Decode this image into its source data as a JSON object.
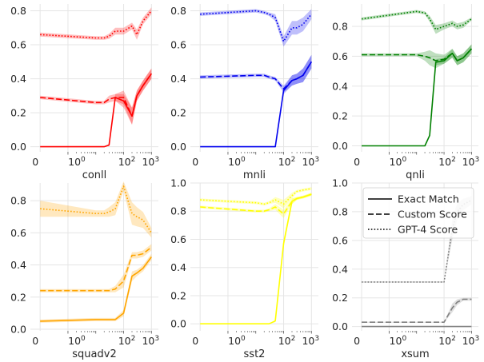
{
  "chart_data": [
    {
      "type": "line",
      "title": "",
      "xlabel": "conll",
      "ylabel": "",
      "xscale": "symlog",
      "x": [
        0,
        10,
        20,
        30,
        50,
        100,
        200,
        300,
        500,
        1000
      ],
      "ylim": [
        -0.03,
        0.84
      ],
      "yticks": [
        0.0,
        0.2,
        0.4,
        0.6,
        0.8
      ],
      "ytick_labels": [
        "0.0",
        "0.2",
        "0.4",
        "0.6",
        "0.8"
      ],
      "xtick_labels": [
        "0",
        "10",
        "0",
        "10",
        "2",
        "10",
        "3"
      ],
      "grid": true,
      "color": "#ff0000",
      "series": [
        {
          "values": [
            0.0,
            0.0,
            0.0,
            0.01,
            0.29,
            0.27,
            0.18,
            0.3,
            0.36,
            0.43
          ],
          "spread": [
            0,
            0,
            0,
            0.005,
            0.02,
            0.04,
            0.05,
            0.03,
            0.03,
            0.03
          ],
          "style": "solid"
        },
        {
          "values": [
            0.29,
            0.26,
            0.26,
            0.28,
            0.29,
            0.29,
            0.18,
            0.3,
            0.36,
            0.43
          ],
          "spread": [
            0.01,
            0.01,
            0.01,
            0.02,
            0.02,
            0.04,
            0.05,
            0.03,
            0.03,
            0.03
          ],
          "style": "dashed"
        },
        {
          "values": [
            0.66,
            0.64,
            0.64,
            0.65,
            0.68,
            0.68,
            0.71,
            0.66,
            0.74,
            0.8
          ],
          "spread": [
            0.012,
            0.01,
            0.01,
            0.015,
            0.02,
            0.02,
            0.02,
            0.03,
            0.02,
            0.02
          ],
          "style": "dotted"
        }
      ]
    },
    {
      "type": "line",
      "title": "",
      "xlabel": "mnli",
      "ylabel": "",
      "xscale": "symlog",
      "x": [
        0,
        10,
        20,
        30,
        50,
        100,
        200,
        300,
        500,
        1000
      ],
      "ylim": [
        -0.03,
        0.84
      ],
      "yticks": [
        0.0,
        0.2,
        0.4,
        0.6,
        0.8
      ],
      "ytick_labels": [
        "0.0",
        "0.2",
        "0.4",
        "0.6",
        "0.8"
      ],
      "xtick_labels": [
        "0",
        "10",
        "0",
        "10",
        "2",
        "10",
        "3"
      ],
      "grid": true,
      "color": "#0000ee",
      "series": [
        {
          "values": [
            0.0,
            0.0,
            0.0,
            0.0,
            0.0,
            0.33,
            0.39,
            0.4,
            0.42,
            0.5
          ],
          "spread": [
            0,
            0,
            0,
            0,
            0,
            0.02,
            0.03,
            0.03,
            0.04,
            0.04
          ],
          "style": "solid"
        },
        {
          "values": [
            0.41,
            0.42,
            0.42,
            0.41,
            0.4,
            0.34,
            0.39,
            0.4,
            0.42,
            0.5
          ],
          "spread": [
            0.01,
            0.01,
            0.01,
            0.01,
            0.01,
            0.02,
            0.03,
            0.03,
            0.04,
            0.04
          ],
          "style": "dashed"
        },
        {
          "values": [
            0.78,
            0.8,
            0.79,
            0.78,
            0.76,
            0.62,
            0.7,
            0.7,
            0.72,
            0.78
          ],
          "spread": [
            0.01,
            0.01,
            0.01,
            0.01,
            0.02,
            0.03,
            0.04,
            0.04,
            0.04,
            0.03
          ],
          "style": "dotted"
        }
      ]
    },
    {
      "type": "line",
      "title": "",
      "xlabel": "qnli",
      "ylabel": "",
      "xscale": "symlog",
      "x": [
        0,
        10,
        20,
        30,
        50,
        100,
        200,
        300,
        500,
        1000
      ],
      "ylim": [
        -0.04,
        0.95
      ],
      "yticks": [
        0.0,
        0.2,
        0.4,
        0.6,
        0.8
      ],
      "ytick_labels": [
        "0.0",
        "0.2",
        "0.4",
        "0.6",
        "0.8"
      ],
      "xtick_labels": [
        "0",
        "10",
        "0",
        "10",
        "2",
        "10",
        "3"
      ],
      "grid": true,
      "color": "#008000",
      "series": [
        {
          "values": [
            0.0,
            0.0,
            0.0,
            0.07,
            0.56,
            0.57,
            0.62,
            0.57,
            0.59,
            0.65
          ],
          "spread": [
            0,
            0,
            0,
            0.01,
            0.02,
            0.02,
            0.03,
            0.03,
            0.03,
            0.03
          ],
          "style": "solid"
        },
        {
          "values": [
            0.61,
            0.61,
            0.6,
            0.59,
            0.57,
            0.58,
            0.62,
            0.57,
            0.59,
            0.65
          ],
          "spread": [
            0.01,
            0.01,
            0.03,
            0.05,
            0.05,
            0.03,
            0.03,
            0.03,
            0.03,
            0.03
          ],
          "style": "dashed"
        },
        {
          "values": [
            0.85,
            0.9,
            0.89,
            0.85,
            0.78,
            0.8,
            0.82,
            0.8,
            0.81,
            0.85
          ],
          "spread": [
            0.01,
            0.01,
            0.01,
            0.02,
            0.03,
            0.02,
            0.02,
            0.02,
            0.02,
            0.01
          ],
          "style": "dotted"
        }
      ]
    },
    {
      "type": "line",
      "title": "",
      "xlabel": "squadv2",
      "ylabel": "",
      "xscale": "symlog",
      "x": [
        0,
        10,
        20,
        30,
        50,
        100,
        200,
        300,
        500,
        1000
      ],
      "ylim": [
        -0.01,
        0.91
      ],
      "yticks": [
        0.0,
        0.2,
        0.4,
        0.6,
        0.8
      ],
      "ytick_labels": [
        "0.0",
        "0.2",
        "0.4",
        "0.6",
        "0.8"
      ],
      "xtick_labels": [
        "0",
        "10",
        "0",
        "10",
        "2",
        "10",
        "3"
      ],
      "grid": true,
      "color": "#ffa500",
      "series": [
        {
          "values": [
            0.05,
            0.06,
            0.06,
            0.06,
            0.06,
            0.1,
            0.33,
            0.35,
            0.38,
            0.45
          ],
          "spread": [
            0.01,
            0.01,
            0.01,
            0.01,
            0.01,
            0.02,
            0.03,
            0.02,
            0.02,
            0.02
          ],
          "style": "solid"
        },
        {
          "values": [
            0.24,
            0.24,
            0.24,
            0.24,
            0.25,
            0.3,
            0.46,
            0.46,
            0.47,
            0.51
          ],
          "spread": [
            0.01,
            0.01,
            0.01,
            0.01,
            0.02,
            0.04,
            0.02,
            0.02,
            0.02,
            0.02
          ],
          "style": "dashed"
        },
        {
          "values": [
            0.75,
            0.72,
            0.72,
            0.73,
            0.75,
            0.89,
            0.72,
            0.7,
            0.68,
            0.6
          ],
          "spread": [
            0.05,
            0.02,
            0.02,
            0.03,
            0.04,
            0.03,
            0.07,
            0.06,
            0.05,
            0.03
          ],
          "style": "dotted"
        }
      ]
    },
    {
      "type": "line",
      "title": "",
      "xlabel": "sst2",
      "ylabel": "",
      "xscale": "symlog",
      "x": [
        0,
        10,
        20,
        30,
        50,
        100,
        200,
        300,
        500,
        1000
      ],
      "ylim": [
        -0.05,
        1.0
      ],
      "yticks": [
        0.0,
        0.2,
        0.4,
        0.6,
        0.8,
        1.0
      ],
      "ytick_labels": [
        "0.0",
        "0.2",
        "0.4",
        "0.6",
        "0.8",
        "1.0"
      ],
      "xtick_labels": [
        "0",
        "10",
        "0",
        "10",
        "2",
        "10",
        "3"
      ],
      "grid": true,
      "color": "#ffff00",
      "series": [
        {
          "values": [
            0.0,
            0.0,
            0.0,
            0.0,
            0.02,
            0.57,
            0.87,
            0.89,
            0.9,
            0.92
          ],
          "spread": [
            0,
            0,
            0,
            0,
            0.01,
            0.03,
            0.02,
            0.01,
            0.01,
            0.01
          ],
          "style": "solid"
        },
        {
          "values": [
            0.83,
            0.8,
            0.8,
            0.81,
            0.83,
            0.78,
            0.87,
            0.89,
            0.9,
            0.92
          ],
          "spread": [
            0.01,
            0.01,
            0.01,
            0.01,
            0.02,
            0.03,
            0.02,
            0.01,
            0.01,
            0.01
          ],
          "style": "dashed"
        },
        {
          "values": [
            0.88,
            0.86,
            0.85,
            0.86,
            0.88,
            0.85,
            0.91,
            0.94,
            0.95,
            0.96
          ],
          "spread": [
            0.01,
            0.01,
            0.01,
            0.01,
            0.02,
            0.03,
            0.02,
            0.01,
            0.01,
            0.01
          ],
          "style": "dotted"
        }
      ]
    },
    {
      "type": "line",
      "title": "",
      "xlabel": "xsum",
      "ylabel": "",
      "xscale": "symlog",
      "x": [
        0,
        10,
        20,
        30,
        50,
        100,
        200,
        300,
        500,
        1000
      ],
      "ylim": [
        -0.03,
        1.0
      ],
      "yticks": [
        0.0,
        0.2,
        0.4,
        0.6,
        0.8,
        1.0
      ],
      "ytick_labels": [
        "0.0",
        "0.2",
        "0.4",
        "0.6",
        "0.8",
        "1.0"
      ],
      "xtick_labels": [
        "0",
        "10",
        "0",
        "10",
        "2",
        "10",
        "3"
      ],
      "grid": true,
      "color": "#808080",
      "series": [
        {
          "values": [
            0.0,
            0.0,
            0.0,
            0.0,
            0.0,
            0.0,
            0.0,
            0.0,
            0.0,
            0.0
          ],
          "spread": [
            0,
            0,
            0,
            0,
            0,
            0,
            0,
            0,
            0,
            0
          ],
          "style": "solid"
        },
        {
          "values": [
            0.03,
            0.03,
            0.03,
            0.03,
            0.03,
            0.03,
            0.13,
            0.17,
            0.19,
            0.19
          ],
          "spread": [
            0.003,
            0.003,
            0.003,
            0.003,
            0.003,
            0.003,
            0.03,
            0.02,
            0.01,
            0.01
          ],
          "style": "dashed"
        },
        {
          "values": [
            0.31,
            0.31,
            0.31,
            0.31,
            0.31,
            0.31,
            0.68,
            0.8,
            0.85,
            0.88
          ],
          "spread": [
            0.005,
            0.005,
            0.005,
            0.005,
            0.005,
            0.005,
            0.07,
            0.06,
            0.04,
            0.03
          ],
          "style": "dotted"
        }
      ]
    }
  ],
  "legend": {
    "placement": "top",
    "items": [
      {
        "label": "Exact Match",
        "style": "solid"
      },
      {
        "label": "Custom Score",
        "style": "dashed"
      },
      {
        "label": "GPT-4 Score",
        "style": "dotted"
      }
    ]
  }
}
